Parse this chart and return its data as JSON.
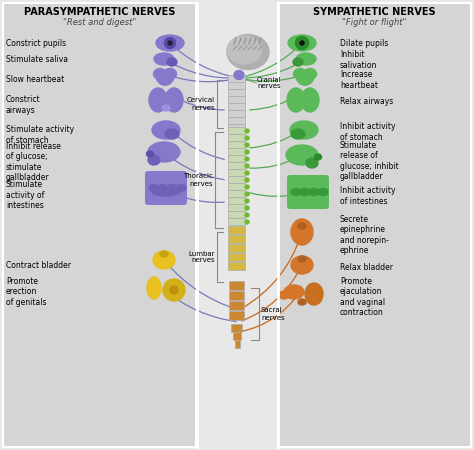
{
  "bg_color": "#e8e8e8",
  "left_panel_color": "#d5d5d5",
  "right_panel_color": "#d5d5d5",
  "center_bg": "#e8e8e8",
  "title_left": "PARASYMPATHETIC NERVES",
  "subtitle_left": "\"Rest and digest\"",
  "title_right": "SYMPATHETIC NERVES",
  "subtitle_right": "\"Fight or flight\"",
  "left_color": "#8878cc",
  "right_color_upper": "#5aba5a",
  "right_color_lower": "#d4752a",
  "yellow_color": "#e8c020",
  "line_left_color": "#7878c0",
  "line_right_upper_color": "#55aa55",
  "line_right_lower_color": "#c86820",
  "spine_gray": "#b8b8b8",
  "spine_green": "#88cc44",
  "spine_yellow": "#d4b040",
  "spine_orange": "#cc8030",
  "brain_color": "#a0a0a0",
  "nerve_labels": [
    "Cranial\nnerves",
    "Cervical\nnerves",
    "Thoracic\nnerves",
    "Lumbar\nnerves",
    "Sacral\nnerves"
  ],
  "left_labels": [
    [
      407,
      "Constrict pupils"
    ],
    [
      390,
      "Stimulate saliva"
    ],
    [
      370,
      "Slow heartbeat"
    ],
    [
      345,
      "Constrict\nairways"
    ],
    [
      315,
      "Stimulate activity\nof stomach"
    ],
    [
      288,
      "Inhibit release\nof glucose;\nstimulate\ngallbladder"
    ],
    [
      255,
      "Stimulate\nactivity of\nintestines"
    ],
    [
      185,
      "Contract bladder"
    ],
    [
      158,
      "Promote\nerection\nof genitals"
    ]
  ],
  "right_labels": [
    [
      407,
      "Dilate pupils"
    ],
    [
      390,
      "Inhibit\nsalivation"
    ],
    [
      370,
      "Increase\nheartbeat"
    ],
    [
      348,
      "Relax airways"
    ],
    [
      318,
      "Inhibit activity\nof stomach"
    ],
    [
      289,
      "Stimulate\nrelease of\nglucose; inhibit\ngallbladder"
    ],
    [
      254,
      "Inhibit activity\nof intestines"
    ],
    [
      215,
      "Secrete\nepinephrine\nand norepin-\nephrine"
    ],
    [
      183,
      "Relax bladder"
    ],
    [
      153,
      "Promote\nejaculation\nand vaginal\ncontraction"
    ]
  ]
}
